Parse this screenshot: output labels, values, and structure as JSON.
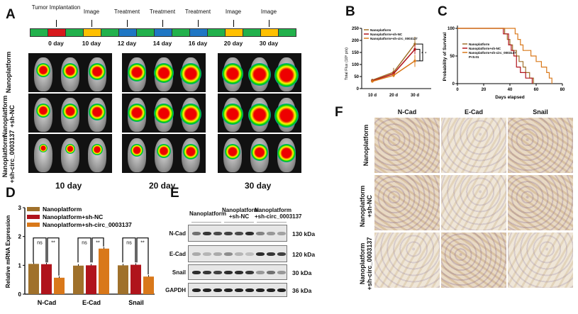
{
  "panels": {
    "A": "A",
    "B": "B",
    "C": "C",
    "D": "D",
    "E": "E",
    "F": "F"
  },
  "timeline": {
    "events": [
      {
        "label": "Tumor Implantation",
        "day": "0 day"
      },
      {
        "label": "Image",
        "day": "10 day"
      },
      {
        "label": "Treatment",
        "day": "12 day"
      },
      {
        "label": "Treatment",
        "day": "14 day"
      },
      {
        "label": "Treatment",
        "day": "16 day"
      },
      {
        "label": "Image",
        "day": "20 day"
      },
      {
        "label": "Image",
        "day": "30 day"
      }
    ],
    "segment_colors": [
      "#22b14c",
      "#d7191c",
      "#22b14c",
      "#ffc000",
      "#22b14c",
      "#1f77c4",
      "#22b14c",
      "#1f77c4",
      "#22b14c",
      "#1f77c4",
      "#22b14c",
      "#ffc000",
      "#22b14c",
      "#ffc000",
      "#22b14c"
    ]
  },
  "imaging": {
    "groups": [
      "Nanoplatform",
      "Nanoplatform\n+sh-NC",
      "Nanoplatform\n+sh-circ_0003137"
    ],
    "timepoints": [
      "10 day",
      "20 day",
      "30 day"
    ]
  },
  "colors": {
    "nano": "#a0712b",
    "shnc": "#b0141c",
    "shcirc": "#d9781a"
  },
  "chart_data": [
    {
      "panel": "B",
      "type": "line",
      "ylabel": "Total Flux (10⁸ p/s)",
      "categories": [
        "10 d",
        "20 d",
        "30 d"
      ],
      "ylim": [
        0,
        250
      ],
      "yticks": [
        0,
        50,
        100,
        150,
        200,
        250
      ],
      "series": [
        {
          "name": "Nanoplatform",
          "values": [
            35,
            68,
            185
          ],
          "err": [
            5,
            18,
            30
          ]
        },
        {
          "name": "Nanoplatform+sh-NC",
          "values": [
            32,
            62,
            163
          ],
          "err": [
            4,
            10,
            20
          ]
        },
        {
          "name": "Nanoplatform+sh-circ_0003137",
          "values": [
            30,
            55,
            115
          ],
          "err": [
            4,
            8,
            25
          ]
        }
      ],
      "annotations": [
        "*",
        "*"
      ]
    },
    {
      "panel": "C",
      "type": "line",
      "xlabel": "Days elapsed",
      "ylabel": "Probability of Survival",
      "xlim": [
        0,
        80
      ],
      "ylim": [
        0,
        100
      ],
      "xticks": [
        0,
        20,
        40,
        60,
        80
      ],
      "yticks": [
        0,
        50,
        100
      ],
      "annotation": "P<0.01",
      "series": [
        {
          "name": "Nanoplatform",
          "steps": [
            [
              0,
              100
            ],
            [
              36,
              100
            ],
            [
              36,
              90
            ],
            [
              38,
              90
            ],
            [
              38,
              80
            ],
            [
              40,
              80
            ],
            [
              40,
              70
            ],
            [
              42,
              70
            ],
            [
              42,
              60
            ],
            [
              45,
              60
            ],
            [
              45,
              50
            ],
            [
              47,
              50
            ],
            [
              47,
              40
            ],
            [
              50,
              40
            ],
            [
              50,
              30
            ],
            [
              52,
              30
            ],
            [
              52,
              20
            ],
            [
              55,
              20
            ],
            [
              55,
              10
            ],
            [
              58,
              10
            ],
            [
              58,
              0
            ]
          ]
        },
        {
          "name": "Nanoplatform+sh-NC",
          "steps": [
            [
              0,
              100
            ],
            [
              35,
              100
            ],
            [
              35,
              90
            ],
            [
              39,
              90
            ],
            [
              39,
              70
            ],
            [
              41,
              70
            ],
            [
              41,
              60
            ],
            [
              43,
              60
            ],
            [
              43,
              50
            ],
            [
              45,
              50
            ],
            [
              45,
              30
            ],
            [
              48,
              30
            ],
            [
              48,
              20
            ],
            [
              52,
              20
            ],
            [
              52,
              10
            ],
            [
              57,
              10
            ],
            [
              57,
              0
            ]
          ]
        },
        {
          "name": "Nanoplatform+sh-circ_0003137",
          "steps": [
            [
              0,
              100
            ],
            [
              44,
              100
            ],
            [
              44,
              90
            ],
            [
              46,
              90
            ],
            [
              46,
              80
            ],
            [
              48,
              80
            ],
            [
              48,
              70
            ],
            [
              50,
              70
            ],
            [
              50,
              60
            ],
            [
              56,
              60
            ],
            [
              56,
              50
            ],
            [
              60,
              50
            ],
            [
              60,
              40
            ],
            [
              64,
              40
            ],
            [
              64,
              30
            ],
            [
              68,
              30
            ],
            [
              68,
              20
            ],
            [
              70,
              20
            ],
            [
              70,
              10
            ],
            [
              72,
              10
            ],
            [
              72,
              0
            ]
          ]
        }
      ]
    },
    {
      "panel": "D",
      "type": "bar",
      "ylabel": "Relative mRNA Expression",
      "categories": [
        "N-Cad",
        "E-Cad",
        "Snail"
      ],
      "ylim": [
        0,
        3
      ],
      "yticks": [
        0,
        1,
        2,
        3
      ],
      "series": [
        {
          "name": "Nanoplatform",
          "values": [
            1.05,
            0.99,
            1.0
          ]
        },
        {
          "name": "Nanoplatform+sh-NC",
          "values": [
            1.04,
            1.0,
            1.02
          ]
        },
        {
          "name": "Nanoplatform+sh-circ_0003137",
          "values": [
            0.57,
            1.58,
            0.61
          ]
        }
      ],
      "significance": [
        [
          "ns",
          "**"
        ],
        [
          "ns",
          "**"
        ],
        [
          "ns",
          "**"
        ]
      ]
    }
  ],
  "western": {
    "groups": [
      "Nanoplatform",
      "Nanoplatform\n+sh-NC",
      "Nanoplatform\n+sh-circ_0003137"
    ],
    "rows": [
      {
        "protein": "N-Cad",
        "size": "130 kDa",
        "intensity": [
          0.6,
          0.9,
          0.8,
          0.85,
          0.8,
          0.95,
          0.5,
          0.4,
          0.35
        ]
      },
      {
        "protein": "E-Cad",
        "size": "120 kDa",
        "intensity": [
          0.3,
          0.25,
          0.3,
          0.45,
          0.25,
          0.2,
          0.95,
          0.9,
          0.85
        ]
      },
      {
        "protein": "Snail",
        "size": "30 kDa",
        "intensity": [
          0.95,
          0.9,
          0.85,
          0.95,
          0.95,
          0.9,
          0.4,
          0.6,
          0.4
        ]
      },
      {
        "protein": "GAPDH",
        "size": "36 kDa",
        "intensity": [
          1,
          1,
          1,
          1,
          1,
          1,
          1,
          1,
          1
        ]
      }
    ]
  },
  "ihc": {
    "markers": [
      "N-Cad",
      "E-Cad",
      "Snail"
    ],
    "groups": [
      "Nanoplatform",
      "Nanoplatform\n+sh-NC",
      "Nanoplatform\n+sh-circ_0003137"
    ]
  }
}
